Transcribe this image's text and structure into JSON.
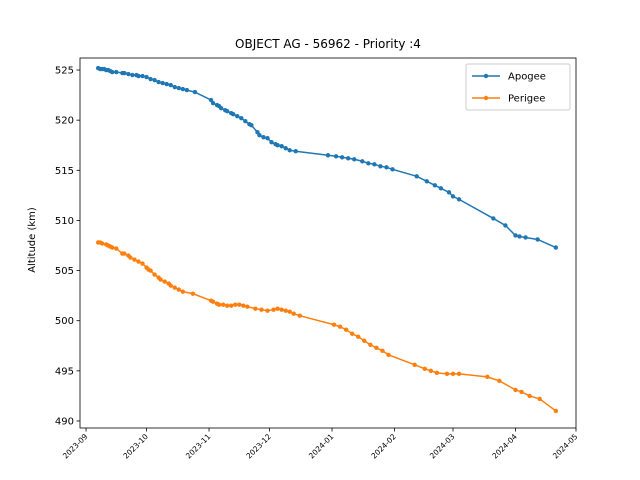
{
  "chart_data": {
    "type": "line",
    "title": "OBJECT AG - 56962 - Priority :4",
    "xlabel": "",
    "ylabel": "Altitude (km)",
    "xlim": [
      "2023-08-29",
      "2024-05-01"
    ],
    "ylim": [
      489.3,
      526.2
    ],
    "grid": false,
    "legend_position": "top-right",
    "x_ticks": [
      "2023-09",
      "2023-10",
      "2023-11",
      "2023-12",
      "2024-01",
      "2024-02",
      "2024-03",
      "2024-04",
      "2024-05"
    ],
    "y_ticks": [
      490,
      495,
      500,
      505,
      510,
      515,
      520,
      525
    ],
    "series": [
      {
        "name": "Apogee",
        "color": "#1f77b4",
        "points": [
          [
            "2023-09-07",
            525.2
          ],
          [
            "2023-09-08",
            525.1
          ],
          [
            "2023-09-09",
            525.1
          ],
          [
            "2023-09-10",
            525.1
          ],
          [
            "2023-09-11",
            525.0
          ],
          [
            "2023-09-12",
            525.0
          ],
          [
            "2023-09-13",
            524.9
          ],
          [
            "2023-09-14",
            524.8
          ],
          [
            "2023-09-16",
            524.8
          ],
          [
            "2023-09-19",
            524.7
          ],
          [
            "2023-09-20",
            524.7
          ],
          [
            "2023-09-22",
            524.6
          ],
          [
            "2023-09-24",
            524.5
          ],
          [
            "2023-09-26",
            524.5
          ],
          [
            "2023-09-27",
            524.4
          ],
          [
            "2023-09-29",
            524.4
          ],
          [
            "2023-10-01",
            524.3
          ],
          [
            "2023-10-03",
            524.1
          ],
          [
            "2023-10-05",
            524.0
          ],
          [
            "2023-10-07",
            523.8
          ],
          [
            "2023-10-09",
            523.7
          ],
          [
            "2023-10-11",
            523.6
          ],
          [
            "2023-10-13",
            523.5
          ],
          [
            "2023-10-15",
            523.3
          ],
          [
            "2023-10-17",
            523.2
          ],
          [
            "2023-10-19",
            523.1
          ],
          [
            "2023-10-21",
            523.0
          ],
          [
            "2023-10-25",
            522.8
          ],
          [
            "2023-11-02",
            522.0
          ],
          [
            "2023-11-03",
            521.7
          ],
          [
            "2023-11-05",
            521.5
          ],
          [
            "2023-11-06",
            521.4
          ],
          [
            "2023-11-07",
            521.2
          ],
          [
            "2023-11-09",
            521.0
          ],
          [
            "2023-11-10",
            520.9
          ],
          [
            "2023-11-12",
            520.7
          ],
          [
            "2023-11-13",
            520.6
          ],
          [
            "2023-11-15",
            520.4
          ],
          [
            "2023-11-17",
            520.2
          ],
          [
            "2023-11-19",
            519.9
          ],
          [
            "2023-11-21",
            519.6
          ],
          [
            "2023-11-22",
            519.5
          ],
          [
            "2023-11-25",
            518.8
          ],
          [
            "2023-11-26",
            518.5
          ],
          [
            "2023-11-28",
            518.3
          ],
          [
            "2023-11-30",
            518.2
          ],
          [
            "2023-12-02",
            517.8
          ],
          [
            "2023-12-04",
            517.6
          ],
          [
            "2023-12-05",
            517.5
          ],
          [
            "2023-12-07",
            517.4
          ],
          [
            "2023-12-09",
            517.2
          ],
          [
            "2023-12-11",
            517.0
          ],
          [
            "2023-12-14",
            516.9
          ],
          [
            "2023-12-30",
            516.5
          ],
          [
            "2024-01-03",
            516.4
          ],
          [
            "2024-01-06",
            516.3
          ],
          [
            "2024-01-09",
            516.2
          ],
          [
            "2024-01-12",
            516.1
          ],
          [
            "2024-01-16",
            515.9
          ],
          [
            "2024-01-19",
            515.7
          ],
          [
            "2024-01-22",
            515.6
          ],
          [
            "2024-01-25",
            515.4
          ],
          [
            "2024-01-28",
            515.3
          ],
          [
            "2024-01-31",
            515.1
          ],
          [
            "2024-02-12",
            514.4
          ],
          [
            "2024-02-17",
            513.9
          ],
          [
            "2024-02-21",
            513.5
          ],
          [
            "2024-02-24",
            513.2
          ],
          [
            "2024-02-28",
            512.8
          ],
          [
            "2024-03-01",
            512.4
          ],
          [
            "2024-03-04",
            512.1
          ],
          [
            "2024-03-21",
            510.2
          ],
          [
            "2024-03-27",
            509.5
          ],
          [
            "2024-04-01",
            508.5
          ],
          [
            "2024-04-03",
            508.4
          ],
          [
            "2024-04-06",
            508.3
          ],
          [
            "2024-04-12",
            508.1
          ],
          [
            "2024-04-21",
            507.3
          ]
        ]
      },
      {
        "name": "Perigee",
        "color": "#ff7f0e",
        "points": [
          [
            "2023-09-07",
            507.8
          ],
          [
            "2023-09-08",
            507.8
          ],
          [
            "2023-09-09",
            507.7
          ],
          [
            "2023-09-11",
            507.6
          ],
          [
            "2023-09-12",
            507.5
          ],
          [
            "2023-09-13",
            507.4
          ],
          [
            "2023-09-14",
            507.3
          ],
          [
            "2023-09-16",
            507.2
          ],
          [
            "2023-09-19",
            506.7
          ],
          [
            "2023-09-20",
            506.7
          ],
          [
            "2023-09-22",
            506.5
          ],
          [
            "2023-09-23",
            506.3
          ],
          [
            "2023-09-25",
            506.1
          ],
          [
            "2023-09-27",
            505.9
          ],
          [
            "2023-09-29",
            505.7
          ],
          [
            "2023-10-01",
            505.3
          ],
          [
            "2023-10-02",
            505.1
          ],
          [
            "2023-10-03",
            505.0
          ],
          [
            "2023-10-05",
            504.6
          ],
          [
            "2023-10-07",
            504.3
          ],
          [
            "2023-10-08",
            504.1
          ],
          [
            "2023-10-10",
            503.9
          ],
          [
            "2023-10-12",
            503.7
          ],
          [
            "2023-10-13",
            503.5
          ],
          [
            "2023-10-15",
            503.3
          ],
          [
            "2023-10-17",
            503.1
          ],
          [
            "2023-10-19",
            502.9
          ],
          [
            "2023-10-24",
            502.7
          ],
          [
            "2023-11-02",
            502.0
          ],
          [
            "2023-11-03",
            501.9
          ],
          [
            "2023-11-05",
            501.7
          ],
          [
            "2023-11-06",
            501.6
          ],
          [
            "2023-11-08",
            501.6
          ],
          [
            "2023-11-10",
            501.5
          ],
          [
            "2023-11-12",
            501.5
          ],
          [
            "2023-11-14",
            501.6
          ],
          [
            "2023-11-16",
            501.6
          ],
          [
            "2023-11-18",
            501.5
          ],
          [
            "2023-11-20",
            501.4
          ],
          [
            "2023-11-24",
            501.2
          ],
          [
            "2023-11-27",
            501.1
          ],
          [
            "2023-11-30",
            501.0
          ],
          [
            "2023-12-03",
            501.1
          ],
          [
            "2023-12-05",
            501.2
          ],
          [
            "2023-12-07",
            501.1
          ],
          [
            "2023-12-09",
            501.0
          ],
          [
            "2023-12-11",
            500.9
          ],
          [
            "2023-12-13",
            500.7
          ],
          [
            "2023-12-16",
            500.5
          ],
          [
            "2024-01-02",
            499.6
          ],
          [
            "2024-01-05",
            499.4
          ],
          [
            "2024-01-08",
            499.1
          ],
          [
            "2024-01-11",
            498.7
          ],
          [
            "2024-01-14",
            498.4
          ],
          [
            "2024-01-17",
            498.0
          ],
          [
            "2024-01-20",
            497.6
          ],
          [
            "2024-01-23",
            497.3
          ],
          [
            "2024-01-26",
            497.0
          ],
          [
            "2024-01-29",
            496.6
          ],
          [
            "2024-02-11",
            495.6
          ],
          [
            "2024-02-16",
            495.2
          ],
          [
            "2024-02-19",
            495.0
          ],
          [
            "2024-02-22",
            494.8
          ],
          [
            "2024-02-27",
            494.7
          ],
          [
            "2024-03-01",
            494.7
          ],
          [
            "2024-03-04",
            494.7
          ],
          [
            "2024-03-18",
            494.4
          ],
          [
            "2024-03-24",
            494.0
          ],
          [
            "2024-04-01",
            493.1
          ],
          [
            "2024-04-04",
            492.9
          ],
          [
            "2024-04-08",
            492.5
          ],
          [
            "2024-04-13",
            492.2
          ],
          [
            "2024-04-21",
            491.0
          ]
        ]
      }
    ]
  }
}
